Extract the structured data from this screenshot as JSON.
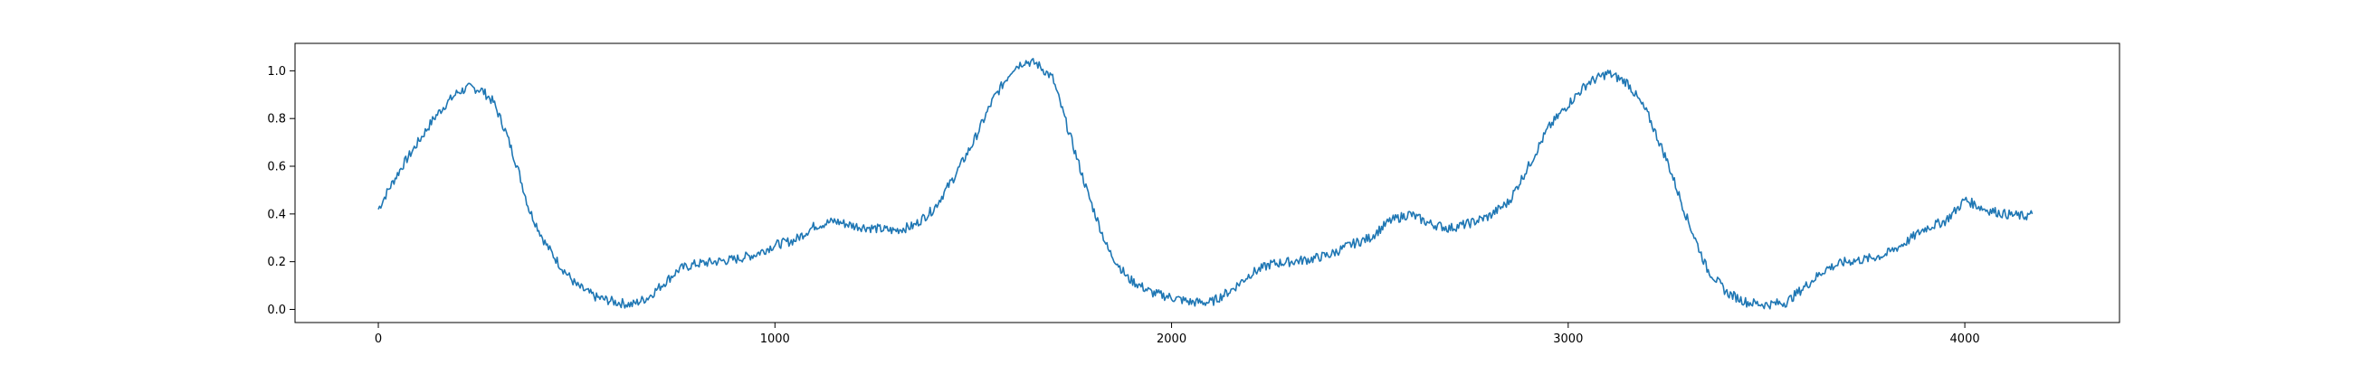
{
  "chart_data": {
    "type": "line",
    "title": "",
    "xlabel": "",
    "ylabel": "",
    "xlim": [
      -210,
      4390
    ],
    "ylim": [
      -0.055,
      1.115
    ],
    "grid": false,
    "x_ticks": [
      0,
      1000,
      2000,
      3000,
      4000
    ],
    "y_ticks": [
      0.0,
      0.2,
      0.4,
      0.6,
      0.8,
      1.0
    ],
    "x_tick_labels": [
      "0",
      "1000",
      "2000",
      "3000",
      "4000"
    ],
    "y_tick_labels": [
      "0.0",
      "0.2",
      "0.4",
      "0.6",
      "0.8",
      "1.0"
    ],
    "series": [
      {
        "color": "#1f77b4",
        "points": [
          [
            0,
            0.42
          ],
          [
            25,
            0.5
          ],
          [
            60,
            0.6
          ],
          [
            100,
            0.7
          ],
          [
            140,
            0.8
          ],
          [
            170,
            0.86
          ],
          [
            200,
            0.91
          ],
          [
            230,
            0.93
          ],
          [
            260,
            0.92
          ],
          [
            290,
            0.87
          ],
          [
            320,
            0.75
          ],
          [
            350,
            0.6
          ],
          [
            380,
            0.42
          ],
          [
            420,
            0.28
          ],
          [
            460,
            0.18
          ],
          [
            500,
            0.1
          ],
          [
            550,
            0.05
          ],
          [
            600,
            0.03
          ],
          [
            640,
            0.02
          ],
          [
            680,
            0.05
          ],
          [
            720,
            0.11
          ],
          [
            760,
            0.17
          ],
          [
            800,
            0.19
          ],
          [
            850,
            0.2
          ],
          [
            900,
            0.21
          ],
          [
            950,
            0.23
          ],
          [
            1000,
            0.27
          ],
          [
            1050,
            0.29
          ],
          [
            1100,
            0.35
          ],
          [
            1150,
            0.37
          ],
          [
            1200,
            0.35
          ],
          [
            1250,
            0.34
          ],
          [
            1300,
            0.33
          ],
          [
            1350,
            0.35
          ],
          [
            1400,
            0.42
          ],
          [
            1450,
            0.55
          ],
          [
            1500,
            0.7
          ],
          [
            1550,
            0.88
          ],
          [
            1600,
            1.01
          ],
          [
            1630,
            1.04
          ],
          [
            1660,
            1.03
          ],
          [
            1700,
            0.97
          ],
          [
            1740,
            0.75
          ],
          [
            1790,
            0.48
          ],
          [
            1840,
            0.25
          ],
          [
            1890,
            0.13
          ],
          [
            1950,
            0.07
          ],
          [
            2000,
            0.05
          ],
          [
            2050,
            0.03
          ],
          [
            2100,
            0.03
          ],
          [
            2150,
            0.08
          ],
          [
            2200,
            0.15
          ],
          [
            2250,
            0.19
          ],
          [
            2300,
            0.2
          ],
          [
            2350,
            0.21
          ],
          [
            2400,
            0.23
          ],
          [
            2450,
            0.27
          ],
          [
            2500,
            0.3
          ],
          [
            2550,
            0.37
          ],
          [
            2600,
            0.4
          ],
          [
            2650,
            0.36
          ],
          [
            2700,
            0.34
          ],
          [
            2750,
            0.36
          ],
          [
            2800,
            0.39
          ],
          [
            2850,
            0.45
          ],
          [
            2900,
            0.6
          ],
          [
            2950,
            0.76
          ],
          [
            3000,
            0.86
          ],
          [
            3050,
            0.95
          ],
          [
            3100,
            0.99
          ],
          [
            3150,
            0.95
          ],
          [
            3200,
            0.82
          ],
          [
            3250,
            0.62
          ],
          [
            3300,
            0.38
          ],
          [
            3350,
            0.17
          ],
          [
            3400,
            0.07
          ],
          [
            3450,
            0.03
          ],
          [
            3500,
            0.02
          ],
          [
            3550,
            0.03
          ],
          [
            3600,
            0.1
          ],
          [
            3650,
            0.17
          ],
          [
            3700,
            0.2
          ],
          [
            3750,
            0.21
          ],
          [
            3800,
            0.23
          ],
          [
            3850,
            0.28
          ],
          [
            3900,
            0.34
          ],
          [
            3950,
            0.37
          ],
          [
            3980,
            0.42
          ],
          [
            4000,
            0.46
          ],
          [
            4050,
            0.42
          ],
          [
            4100,
            0.4
          ],
          [
            4150,
            0.39
          ],
          [
            4170,
            0.4
          ]
        ]
      }
    ]
  }
}
